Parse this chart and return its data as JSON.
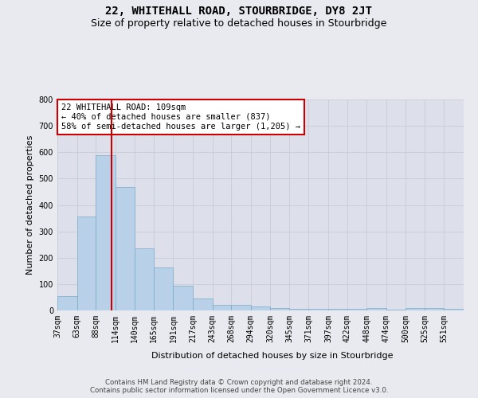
{
  "title": "22, WHITEHALL ROAD, STOURBRIDGE, DY8 2JT",
  "subtitle": "Size of property relative to detached houses in Stourbridge",
  "xlabel": "Distribution of detached houses by size in Stourbridge",
  "ylabel": "Number of detached properties",
  "footer_line1": "Contains HM Land Registry data © Crown copyright and database right 2024.",
  "footer_line2": "Contains public sector information licensed under the Open Government Licence v3.0.",
  "bin_labels": [
    "37sqm",
    "63sqm",
    "88sqm",
    "114sqm",
    "140sqm",
    "165sqm",
    "191sqm",
    "217sqm",
    "243sqm",
    "268sqm",
    "294sqm",
    "320sqm",
    "345sqm",
    "371sqm",
    "397sqm",
    "422sqm",
    "448sqm",
    "474sqm",
    "500sqm",
    "525sqm",
    "551sqm"
  ],
  "bar_values": [
    55,
    355,
    590,
    468,
    235,
    163,
    93,
    45,
    20,
    20,
    15,
    8,
    5,
    5,
    5,
    5,
    8,
    3,
    8,
    8,
    6
  ],
  "bin_edges": [
    37,
    63,
    88,
    114,
    140,
    165,
    191,
    217,
    243,
    268,
    294,
    320,
    345,
    371,
    397,
    422,
    448,
    474,
    500,
    525,
    551,
    577
  ],
  "bar_color": "#b8d0e8",
  "bar_edge_color": "#7aaac8",
  "grid_color": "#c8ccd8",
  "background_color": "#dde0ea",
  "fig_background_color": "#e8eaef",
  "property_size": 109,
  "red_line_color": "#cc0000",
  "annotation_line1": "22 WHITEHALL ROAD: 109sqm",
  "annotation_line2": "← 40% of detached houses are smaller (837)",
  "annotation_line3": "58% of semi-detached houses are larger (1,205) →",
  "annotation_box_color": "white",
  "annotation_box_edge": "#cc0000",
  "ylim": [
    0,
    800
  ],
  "yticks": [
    0,
    100,
    200,
    300,
    400,
    500,
    600,
    700,
    800
  ],
  "title_fontsize": 10,
  "subtitle_fontsize": 9,
  "axis_label_fontsize": 8,
  "tick_fontsize": 7,
  "annotation_fontsize": 7.5
}
